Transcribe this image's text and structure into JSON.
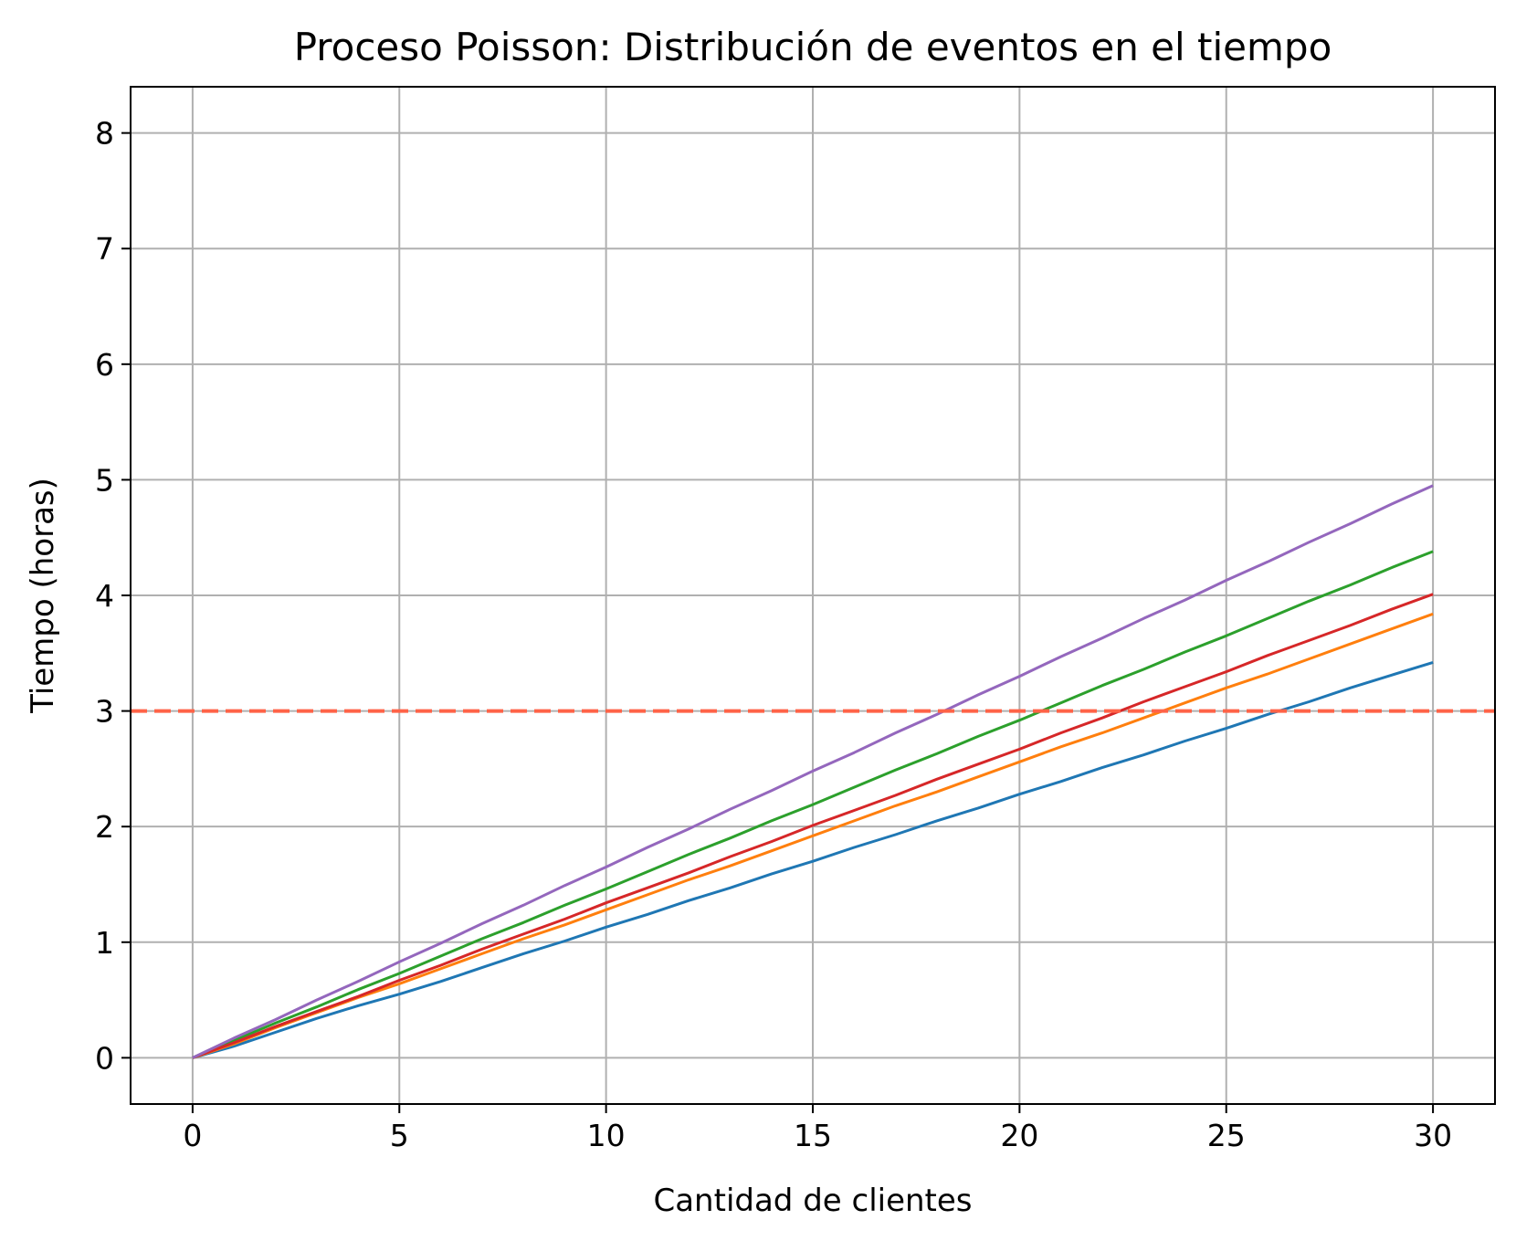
{
  "chart_data": {
    "type": "line",
    "title": "Proceso Poisson: Distribución de eventos en el tiempo",
    "xlabel": "Cantidad de clientes",
    "ylabel": "Tiempo (horas)",
    "xlim": [
      -1.5,
      31.5
    ],
    "ylim": [
      -0.4,
      8.4
    ],
    "xticks": [
      0,
      5,
      10,
      15,
      20,
      25,
      30
    ],
    "yticks": [
      0,
      1,
      2,
      3,
      4,
      5,
      6,
      7,
      8
    ],
    "grid": true,
    "reference_line": {
      "y": 3,
      "style": "dashed",
      "color": "#ff6347"
    },
    "colors": [
      "#1f77b4",
      "#ff7f0e",
      "#2ca02c",
      "#d62728",
      "#9467bd",
      "#8c564b",
      "#e377c2",
      "#7f7f7f",
      "#bcbd22",
      "#17becf"
    ],
    "x": [
      0,
      1,
      2,
      3,
      4,
      5,
      6,
      7,
      8,
      9,
      10,
      11,
      12,
      13,
      14,
      15,
      16,
      17,
      18,
      19,
      20,
      21,
      22,
      23,
      24,
      25,
      26,
      27,
      28,
      29,
      30
    ],
    "series": [
      {
        "values": [
          0,
          0.1,
          0.22,
          0.34,
          0.45,
          0.55,
          0.66,
          0.78,
          0.9,
          1.01,
          1.13,
          1.24,
          1.36,
          1.47,
          1.59,
          1.7,
          1.82,
          1.93,
          2.05,
          2.16,
          2.28,
          2.39,
          2.51,
          2.62,
          2.74,
          2.85,
          2.97,
          3.08,
          3.2,
          3.31,
          3.42
        ]
      },
      {
        "values": [
          0,
          0.12,
          0.26,
          0.39,
          0.52,
          0.64,
          0.77,
          0.9,
          1.03,
          1.15,
          1.28,
          1.41,
          1.54,
          1.66,
          1.79,
          1.92,
          2.05,
          2.18,
          2.3,
          2.43,
          2.56,
          2.69,
          2.81,
          2.94,
          3.07,
          3.2,
          3.32,
          3.45,
          3.58,
          3.71,
          3.84
        ]
      },
      {
        "values": [
          0,
          0.15,
          0.3,
          0.44,
          0.59,
          0.73,
          0.88,
          1.03,
          1.17,
          1.32,
          1.46,
          1.61,
          1.76,
          1.9,
          2.05,
          2.19,
          2.34,
          2.49,
          2.63,
          2.78,
          2.92,
          3.07,
          3.22,
          3.36,
          3.51,
          3.65,
          3.8,
          3.95,
          4.09,
          4.24,
          4.38
        ]
      },
      {
        "values": [
          0,
          0.13,
          0.27,
          0.4,
          0.53,
          0.67,
          0.8,
          0.94,
          1.07,
          1.2,
          1.34,
          1.47,
          1.6,
          1.74,
          1.87,
          2.01,
          2.14,
          2.27,
          2.41,
          2.54,
          2.67,
          2.81,
          2.94,
          3.08,
          3.21,
          3.34,
          3.48,
          3.61,
          3.74,
          3.88,
          4.01
        ]
      },
      {
        "values": [
          0,
          0.17,
          0.33,
          0.5,
          0.66,
          0.83,
          0.99,
          1.16,
          1.32,
          1.49,
          1.65,
          1.82,
          1.98,
          2.15,
          2.31,
          2.48,
          2.64,
          2.81,
          2.97,
          3.14,
          3.3,
          3.47,
          3.63,
          3.8,
          3.96,
          4.13,
          4.29,
          4.46,
          4.62,
          4.79,
          4.95
        ]
      }
    ]
  }
}
